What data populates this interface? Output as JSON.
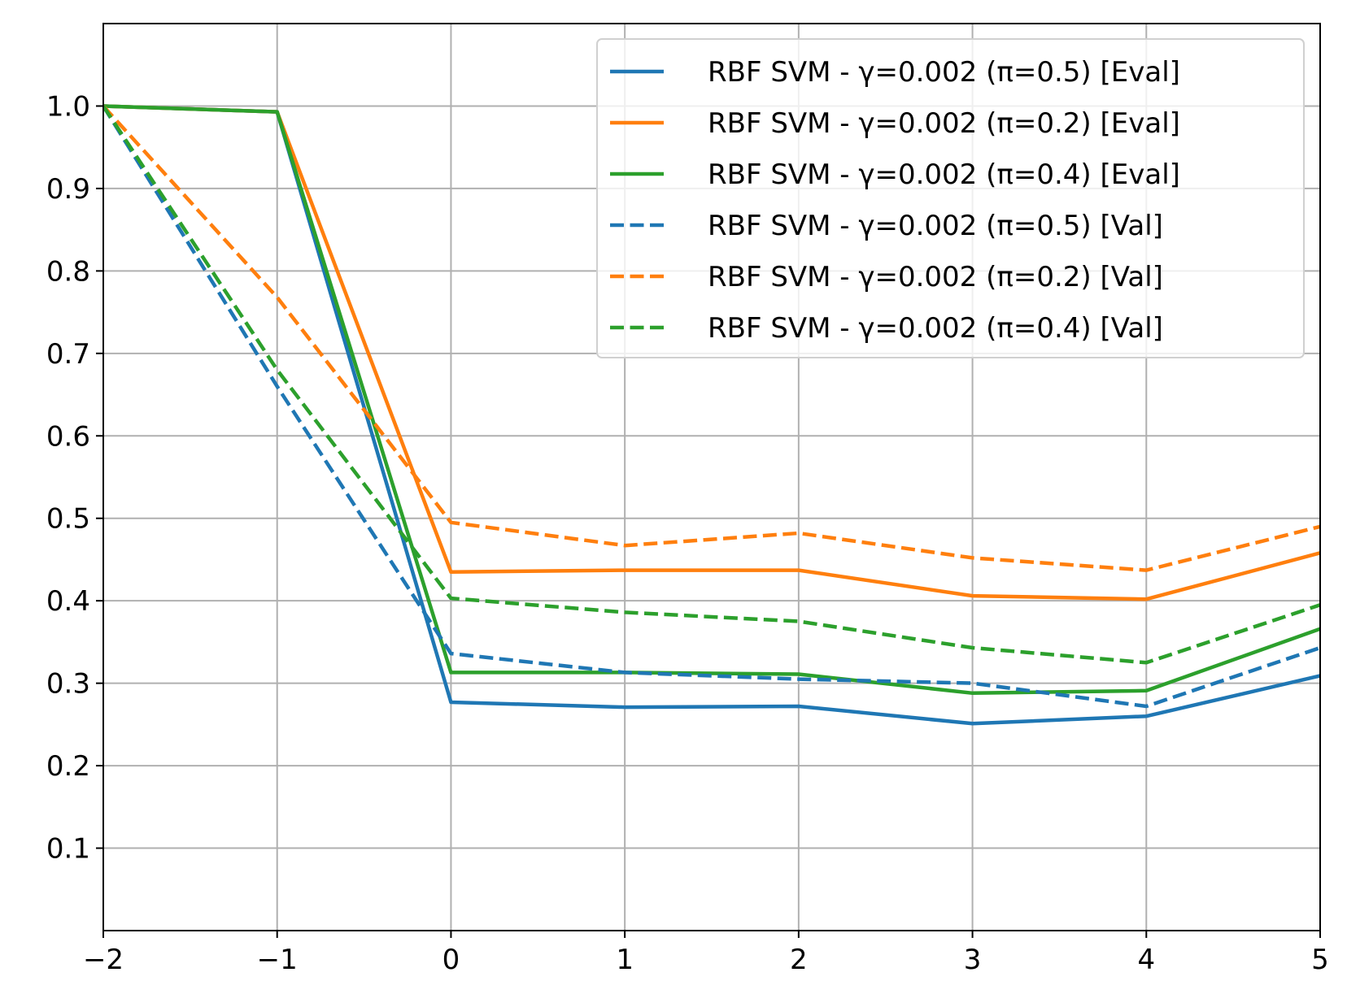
{
  "chart_data": {
    "type": "line",
    "title": "",
    "xlabel": "",
    "ylabel": "",
    "xlim": [
      -2,
      5
    ],
    "ylim": [
      0,
      1.1
    ],
    "x": [
      -2,
      -1,
      0,
      1,
      2,
      3,
      4,
      5
    ],
    "x_tick_labels": [
      "−2",
      "−1",
      "0",
      "1",
      "2",
      "3",
      "4",
      "5"
    ],
    "y_ticks": [
      0.1,
      0.2,
      0.3,
      0.4,
      0.5,
      0.6,
      0.7,
      0.8,
      0.9,
      1.0
    ],
    "y_tick_labels": [
      "0.1",
      "0.2",
      "0.3",
      "0.4",
      "0.5",
      "0.6",
      "0.7",
      "0.8",
      "0.9",
      "1.0"
    ],
    "grid": true,
    "legend_position": "top-right",
    "series": [
      {
        "name": "RBF SVM - γ=0.002 (π=0.5) [Eval]",
        "color": "#1f77b4",
        "style": "solid",
        "values": [
          1.0,
          0.993,
          0.277,
          0.271,
          0.272,
          0.251,
          0.26,
          0.309
        ]
      },
      {
        "name": "RBF SVM - γ=0.002 (π=0.2) [Eval]",
        "color": "#ff7f0e",
        "style": "solid",
        "values": [
          1.0,
          0.993,
          0.435,
          0.437,
          0.437,
          0.406,
          0.402,
          0.458
        ]
      },
      {
        "name": "RBF SVM - γ=0.002 (π=0.4) [Eval]",
        "color": "#2ca02c",
        "style": "solid",
        "values": [
          1.0,
          0.993,
          0.313,
          0.313,
          0.311,
          0.288,
          0.291,
          0.366
        ]
      },
      {
        "name": "RBF SVM - γ=0.002 (π=0.5) [Val]",
        "color": "#1f77b4",
        "style": "dashed",
        "values": [
          1.0,
          0.66,
          0.336,
          0.313,
          0.305,
          0.3,
          0.272,
          0.343
        ]
      },
      {
        "name": "RBF SVM - γ=0.002 (π=0.2) [Val]",
        "color": "#ff7f0e",
        "style": "dashed",
        "values": [
          1.0,
          0.768,
          0.495,
          0.467,
          0.482,
          0.452,
          0.437,
          0.49
        ]
      },
      {
        "name": "RBF SVM - γ=0.002 (π=0.4) [Val]",
        "color": "#2ca02c",
        "style": "dashed",
        "values": [
          1.0,
          0.68,
          0.403,
          0.386,
          0.375,
          0.343,
          0.325,
          0.395
        ]
      }
    ]
  }
}
